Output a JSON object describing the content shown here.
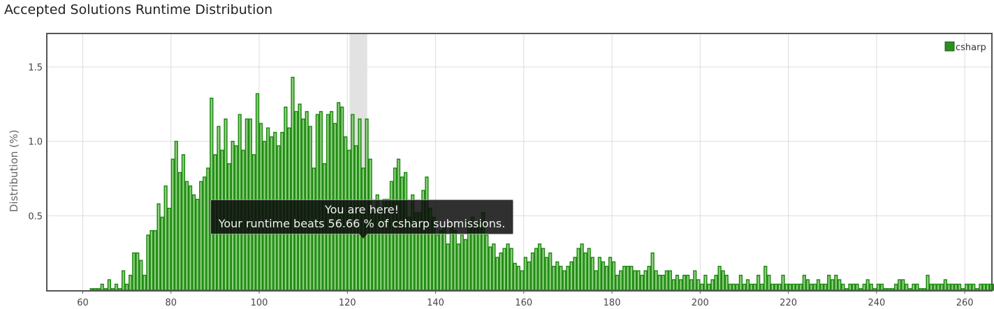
{
  "page": {
    "title": "Accepted Solutions Runtime Distribution",
    "tooltip_title": "You are here!",
    "tooltip_text": "Your runtime beats 56.66 % of csharp submissions."
  },
  "colors": {
    "bar_fill": "#8fd07f",
    "bar_stroke": "#1e8a12",
    "highlight": "#e2e2e2",
    "grid": "#dddddd",
    "legend_swatch": "#2a8f1c"
  },
  "chart_data": {
    "type": "bar",
    "ylabel": "Distribution (%)",
    "xlabel": "",
    "xlim": [
      52,
      266
    ],
    "ylim": [
      0,
      1.72
    ],
    "xticks": [
      60,
      80,
      100,
      120,
      140,
      160,
      180,
      200,
      220,
      240,
      260
    ],
    "yticks": [
      0.5,
      1.0,
      1.5
    ],
    "ytick_labels": [
      "0.5",
      "1.0",
      "1.5"
    ],
    "grid": true,
    "legend": {
      "position": "top-right"
    },
    "highlight_range": [
      120.5,
      124.5
    ],
    "series": [
      {
        "name": "csharp",
        "x_start": 62,
        "x_step": 0.8,
        "values": [
          0.01,
          0.01,
          0.01,
          0.04,
          0.01,
          0.07,
          0.01,
          0.04,
          0.01,
          0.13,
          0.04,
          0.1,
          0.25,
          0.25,
          0.2,
          0.1,
          0.37,
          0.4,
          0.4,
          0.58,
          0.49,
          0.7,
          0.55,
          0.88,
          1.0,
          0.79,
          0.91,
          0.73,
          0.7,
          0.64,
          0.61,
          0.73,
          0.76,
          0.82,
          1.29,
          0.91,
          1.1,
          0.94,
          1.15,
          0.85,
          1.0,
          0.97,
          1.18,
          0.94,
          1.15,
          1.15,
          0.91,
          1.32,
          1.12,
          1.0,
          1.09,
          1.03,
          1.06,
          0.97,
          1.06,
          1.23,
          1.09,
          1.43,
          1.2,
          1.25,
          1.15,
          1.2,
          1.1,
          0.82,
          1.18,
          1.2,
          0.85,
          1.18,
          1.2,
          1.12,
          1.26,
          1.23,
          1.03,
          0.94,
          1.18,
          0.97,
          1.15,
          0.82,
          1.15,
          0.88,
          0.52,
          0.64,
          0.55,
          0.61,
          0.61,
          0.73,
          0.82,
          0.88,
          0.76,
          0.79,
          0.49,
          0.64,
          0.52,
          0.52,
          0.67,
          0.76,
          0.55,
          0.49,
          0.37,
          0.4,
          0.43,
          0.31,
          0.43,
          0.4,
          0.31,
          0.37,
          0.34,
          0.46,
          0.49,
          0.43,
          0.46,
          0.52,
          0.37,
          0.29,
          0.31,
          0.22,
          0.25,
          0.28,
          0.31,
          0.28,
          0.18,
          0.16,
          0.13,
          0.22,
          0.19,
          0.25,
          0.28,
          0.31,
          0.28,
          0.22,
          0.25,
          0.16,
          0.19,
          0.16,
          0.13,
          0.16,
          0.19,
          0.22,
          0.28,
          0.31,
          0.25,
          0.28,
          0.22,
          0.13,
          0.22,
          0.19,
          0.16,
          0.22,
          0.19,
          0.1,
          0.13,
          0.16,
          0.16,
          0.16,
          0.13,
          0.13,
          0.1,
          0.13,
          0.16,
          0.25,
          0.13,
          0.1,
          0.1,
          0.13,
          0.13,
          0.07,
          0.1,
          0.07,
          0.1,
          0.1,
          0.07,
          0.13,
          0.07,
          0.04,
          0.1,
          0.04,
          0.07,
          0.1,
          0.16,
          0.13,
          0.1,
          0.04,
          0.04,
          0.04,
          0.1,
          0.04,
          0.07,
          0.04,
          0.04,
          0.1,
          0.04,
          0.16,
          0.1,
          0.04,
          0.04,
          0.04,
          0.1,
          0.04,
          0.04,
          0.04,
          0.04,
          0.04,
          0.1,
          0.07,
          0.04,
          0.04,
          0.07,
          0.04,
          0.04,
          0.1,
          0.07,
          0.1,
          0.07,
          0.04,
          0.01,
          0.04,
          0.04,
          0.04,
          0.01,
          0.04,
          0.07,
          0.04,
          0.01,
          0.04,
          0.04,
          0.01,
          0.01,
          0.01,
          0.04,
          0.07,
          0.07,
          0.04,
          0.01,
          0.04,
          0.04,
          0.01,
          0.01,
          0.1,
          0.04,
          0.04,
          0.04,
          0.04,
          0.07,
          0.04,
          0.04,
          0.04,
          0.04,
          0.01,
          0.04,
          0.04,
          0.04,
          0.01,
          0.04,
          0.04,
          0.04,
          0.04,
          0.04,
          0.01,
          0.01
        ]
      }
    ]
  }
}
